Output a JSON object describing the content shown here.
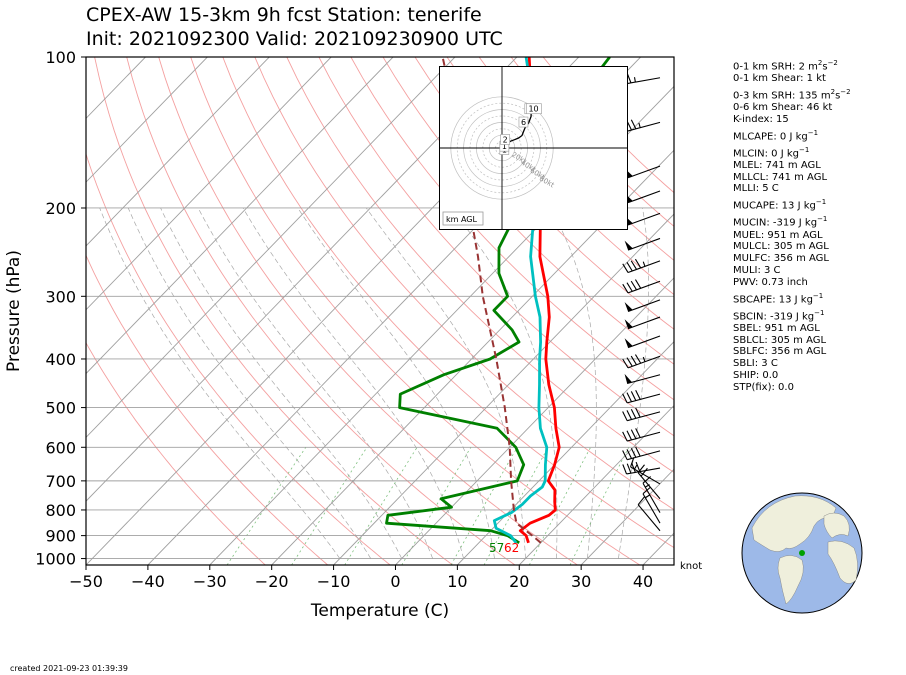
{
  "chart_data": {
    "type": "line",
    "title_line1": "CPEX-AW 15-3km  9h fcst  Station: tenerife",
    "title_line2": "Init: 2021092300  Valid: 202109230900 UTC",
    "xlabel": "Temperature (C)",
    "ylabel": "Pressure (hPa)",
    "xlim": [
      -50,
      45
    ],
    "ylim": [
      1030,
      100
    ],
    "yscale": "log",
    "skew": "skew-T",
    "x_ticks": [
      "−50",
      "−40",
      "−30",
      "−20",
      "−10",
      "0",
      "10",
      "20",
      "30",
      "40"
    ],
    "y_ticks": [
      "100",
      "200",
      "300",
      "400",
      "500",
      "600",
      "700",
      "800",
      "900",
      "1000"
    ],
    "y_tick_values": [
      100,
      200,
      300,
      400,
      500,
      600,
      700,
      800,
      900,
      1000
    ],
    "grid": true,
    "series": [
      {
        "role": "temperature",
        "color": "#ff0000",
        "points": [
          [
            930,
            18.0
          ],
          [
            900,
            16.5
          ],
          [
            880,
            14.8
          ],
          [
            850,
            15.2
          ],
          [
            820,
            17.0
          ],
          [
            800,
            17.2
          ],
          [
            770,
            15.8
          ],
          [
            730,
            14.0
          ],
          [
            700,
            11.5
          ],
          [
            650,
            10.0
          ],
          [
            600,
            8.0
          ],
          [
            550,
            4.5
          ],
          [
            500,
            1.0
          ],
          [
            450,
            -3.5
          ],
          [
            400,
            -8.0
          ],
          [
            370,
            -10.5
          ],
          [
            330,
            -14.0
          ],
          [
            300,
            -17.5
          ],
          [
            250,
            -25.0
          ],
          [
            200,
            -32.5
          ],
          [
            170,
            -37.5
          ],
          [
            150,
            -42.0
          ],
          [
            130,
            -48.0
          ],
          [
            115,
            -53.0
          ],
          [
            100,
            -58.0
          ]
        ]
      },
      {
        "role": "dewpoint",
        "color": "#008000",
        "points": [
          [
            930,
            16.5
          ],
          [
            900,
            13.5
          ],
          [
            880,
            10.0
          ],
          [
            850,
            -8.0
          ],
          [
            820,
            -9.0
          ],
          [
            790,
            0.0
          ],
          [
            760,
            -3.0
          ],
          [
            700,
            6.5
          ],
          [
            650,
            5.0
          ],
          [
            600,
            1.0
          ],
          [
            550,
            -5.0
          ],
          [
            500,
            -24.0
          ],
          [
            470,
            -26.0
          ],
          [
            430,
            -22.0
          ],
          [
            400,
            -17.0
          ],
          [
            370,
            -15.0
          ],
          [
            350,
            -18.0
          ],
          [
            320,
            -24.0
          ],
          [
            300,
            -24.0
          ],
          [
            270,
            -29.0
          ],
          [
            240,
            -33.0
          ],
          [
            200,
            -36.0
          ],
          [
            170,
            -38.0
          ],
          [
            150,
            -44.0
          ],
          [
            130,
            -43.0
          ],
          [
            115,
            -44.0
          ],
          [
            100,
            -45.0
          ]
        ]
      },
      {
        "role": "virtual-temperature",
        "color": "#00c0c0",
        "points": [
          [
            930,
            16.0
          ],
          [
            900,
            14.0
          ],
          [
            870,
            10.5
          ],
          [
            840,
            9.0
          ],
          [
            810,
            10.5
          ],
          [
            780,
            11.0
          ],
          [
            750,
            11.0
          ],
          [
            720,
            11.5
          ],
          [
            700,
            11.0
          ],
          [
            650,
            8.5
          ],
          [
            600,
            6.0
          ],
          [
            550,
            2.0
          ],
          [
            500,
            -1.5
          ],
          [
            450,
            -5.0
          ],
          [
            400,
            -9.0
          ],
          [
            370,
            -11.5
          ],
          [
            330,
            -15.5
          ],
          [
            300,
            -19.5
          ],
          [
            250,
            -26.5
          ],
          [
            200,
            -33.5
          ],
          [
            170,
            -38.0
          ],
          [
            150,
            -43.0
          ],
          [
            130,
            -48.5
          ],
          [
            115,
            -53.0
          ],
          [
            100,
            -58.5
          ]
        ]
      },
      {
        "role": "parcel-profile",
        "color": "#993333",
        "dashed": true,
        "points": [
          [
            930,
            20.0
          ],
          [
            900,
            17.5
          ],
          [
            850,
            13.0
          ],
          [
            800,
            10.5
          ],
          [
            700,
            5.5
          ],
          [
            600,
            0.0
          ],
          [
            500,
            -7.0
          ],
          [
            400,
            -16.0
          ],
          [
            300,
            -28.0
          ],
          [
            250,
            -35.0
          ],
          [
            200,
            -44.0
          ],
          [
            150,
            -55.0
          ],
          [
            100,
            -72.0
          ]
        ]
      }
    ],
    "surface_labels": {
      "dewpoint": "57",
      "temperature": "62"
    },
    "dry_adiabats_K": [
      250,
      260,
      270,
      280,
      290,
      300,
      310,
      320,
      330,
      340,
      350,
      360,
      370,
      380,
      390,
      400,
      410,
      420
    ],
    "moist_adiabats_C": [
      -10,
      -5,
      0,
      5,
      10,
      15,
      20,
      25,
      30,
      35
    ],
    "mixing_ratios": [
      0.4,
      1,
      2,
      4,
      7,
      10,
      16,
      24
    ],
    "wind_barbs": {
      "unit_label": "knot",
      "levels": [
        {
          "p": 110,
          "dir": 260,
          "kt": 25
        },
        {
          "p": 135,
          "dir": 255,
          "kt": 35
        },
        {
          "p": 165,
          "dir": 250,
          "kt": 50
        },
        {
          "p": 185,
          "dir": 250,
          "kt": 50
        },
        {
          "p": 205,
          "dir": 250,
          "kt": 50
        },
        {
          "p": 230,
          "dir": 250,
          "kt": 50
        },
        {
          "p": 255,
          "dir": 250,
          "kt": 45
        },
        {
          "p": 280,
          "dir": 250,
          "kt": 40
        },
        {
          "p": 305,
          "dir": 250,
          "kt": 50
        },
        {
          "p": 330,
          "dir": 250,
          "kt": 50
        },
        {
          "p": 360,
          "dir": 250,
          "kt": 50
        },
        {
          "p": 395,
          "dir": 250,
          "kt": 45
        },
        {
          "p": 430,
          "dir": 255,
          "kt": 50
        },
        {
          "p": 470,
          "dir": 255,
          "kt": 40
        },
        {
          "p": 510,
          "dir": 255,
          "kt": 40
        },
        {
          "p": 560,
          "dir": 255,
          "kt": 40
        },
        {
          "p": 610,
          "dir": 255,
          "kt": 40
        },
        {
          "p": 660,
          "dir": 260,
          "kt": 40
        },
        {
          "p": 710,
          "dir": 300,
          "kt": 15
        },
        {
          "p": 760,
          "dir": 320,
          "kt": 20
        },
        {
          "p": 810,
          "dir": 330,
          "kt": 15
        },
        {
          "p": 850,
          "dir": 330,
          "kt": 15
        },
        {
          "p": 880,
          "dir": 320,
          "kt": 10
        }
      ]
    },
    "hodograph": {
      "label": "km AGL",
      "ring_labels": [
        "20kt",
        "40kt",
        "60kt",
        "80kt"
      ],
      "points_kt": [
        [
          2,
          2
        ],
        [
          6,
          5
        ],
        [
          10,
          8
        ],
        [
          15,
          10
        ],
        [
          20,
          12
        ],
        [
          24,
          15
        ],
        [
          26,
          20
        ],
        [
          28,
          25
        ],
        [
          32,
          30
        ],
        [
          35,
          38
        ],
        [
          35,
          44
        ],
        [
          38,
          45
        ],
        [
          42,
          46
        ]
      ],
      "height_labels": [
        {
          "text": "1",
          "u": 1,
          "v": -3
        },
        {
          "text": "1",
          "u": 1,
          "v": 1
        },
        {
          "text": "2",
          "u": 2,
          "v": 9
        },
        {
          "text": "6",
          "u": 24,
          "v": 30
        },
        {
          "text": "1",
          "u": 31,
          "v": 46
        },
        {
          "text": "10",
          "u": 33,
          "v": 46
        }
      ]
    }
  },
  "stats": [
    {
      "text": "0-1 km SRH: 2 m",
      "sup": "2",
      "text2": "s",
      "sup2": "−2"
    },
    {
      "text": "0-1 km Shear: 1 kt"
    },
    {
      "text": "0-3 km SRH: 135 m",
      "sup": "2",
      "text2": "s",
      "sup2": "−2"
    },
    {
      "text": "0-6 km Shear: 46 kt"
    },
    {
      "text": "K-index: 15"
    },
    {
      "text": "MLCAPE: 0 J kg",
      "sup": "−1"
    },
    {
      "text": "MLCIN: 0 J kg",
      "sup": "−1"
    },
    {
      "text": "MLEL: 741 m AGL"
    },
    {
      "text": "MLLCL: 741 m AGL"
    },
    {
      "text": "MLLI: 5 C"
    },
    {
      "text": "MUCAPE: 13 J kg",
      "sup": "−1"
    },
    {
      "text": "MUCIN: -319 J kg",
      "sup": "−1"
    },
    {
      "text": "MUEL: 951 m AGL"
    },
    {
      "text": "MULCL: 305 m AGL"
    },
    {
      "text": "MULFC: 356 m AGL"
    },
    {
      "text": "MULI: 3 C"
    },
    {
      "text": "PWV: 0.73 inch"
    },
    {
      "text": "SBCAPE: 13 J kg",
      "sup": "−1"
    },
    {
      "text": "SBCIN: -319 J kg",
      "sup": "−1"
    },
    {
      "text": "SBEL: 951 m AGL"
    },
    {
      "text": "SBLCL: 305 m AGL"
    },
    {
      "text": "SBLFC: 356 m AGL"
    },
    {
      "text": "SBLI: 3 C"
    },
    {
      "text": "SHIP: 0.0"
    },
    {
      "text": "STP(fix): 0.0"
    }
  ],
  "created": "created 2021-09-23 01:39:39",
  "globe": {
    "ocean_color": "#9db9e8",
    "land_color": "#efefdc",
    "marker_color": "#00a000"
  }
}
